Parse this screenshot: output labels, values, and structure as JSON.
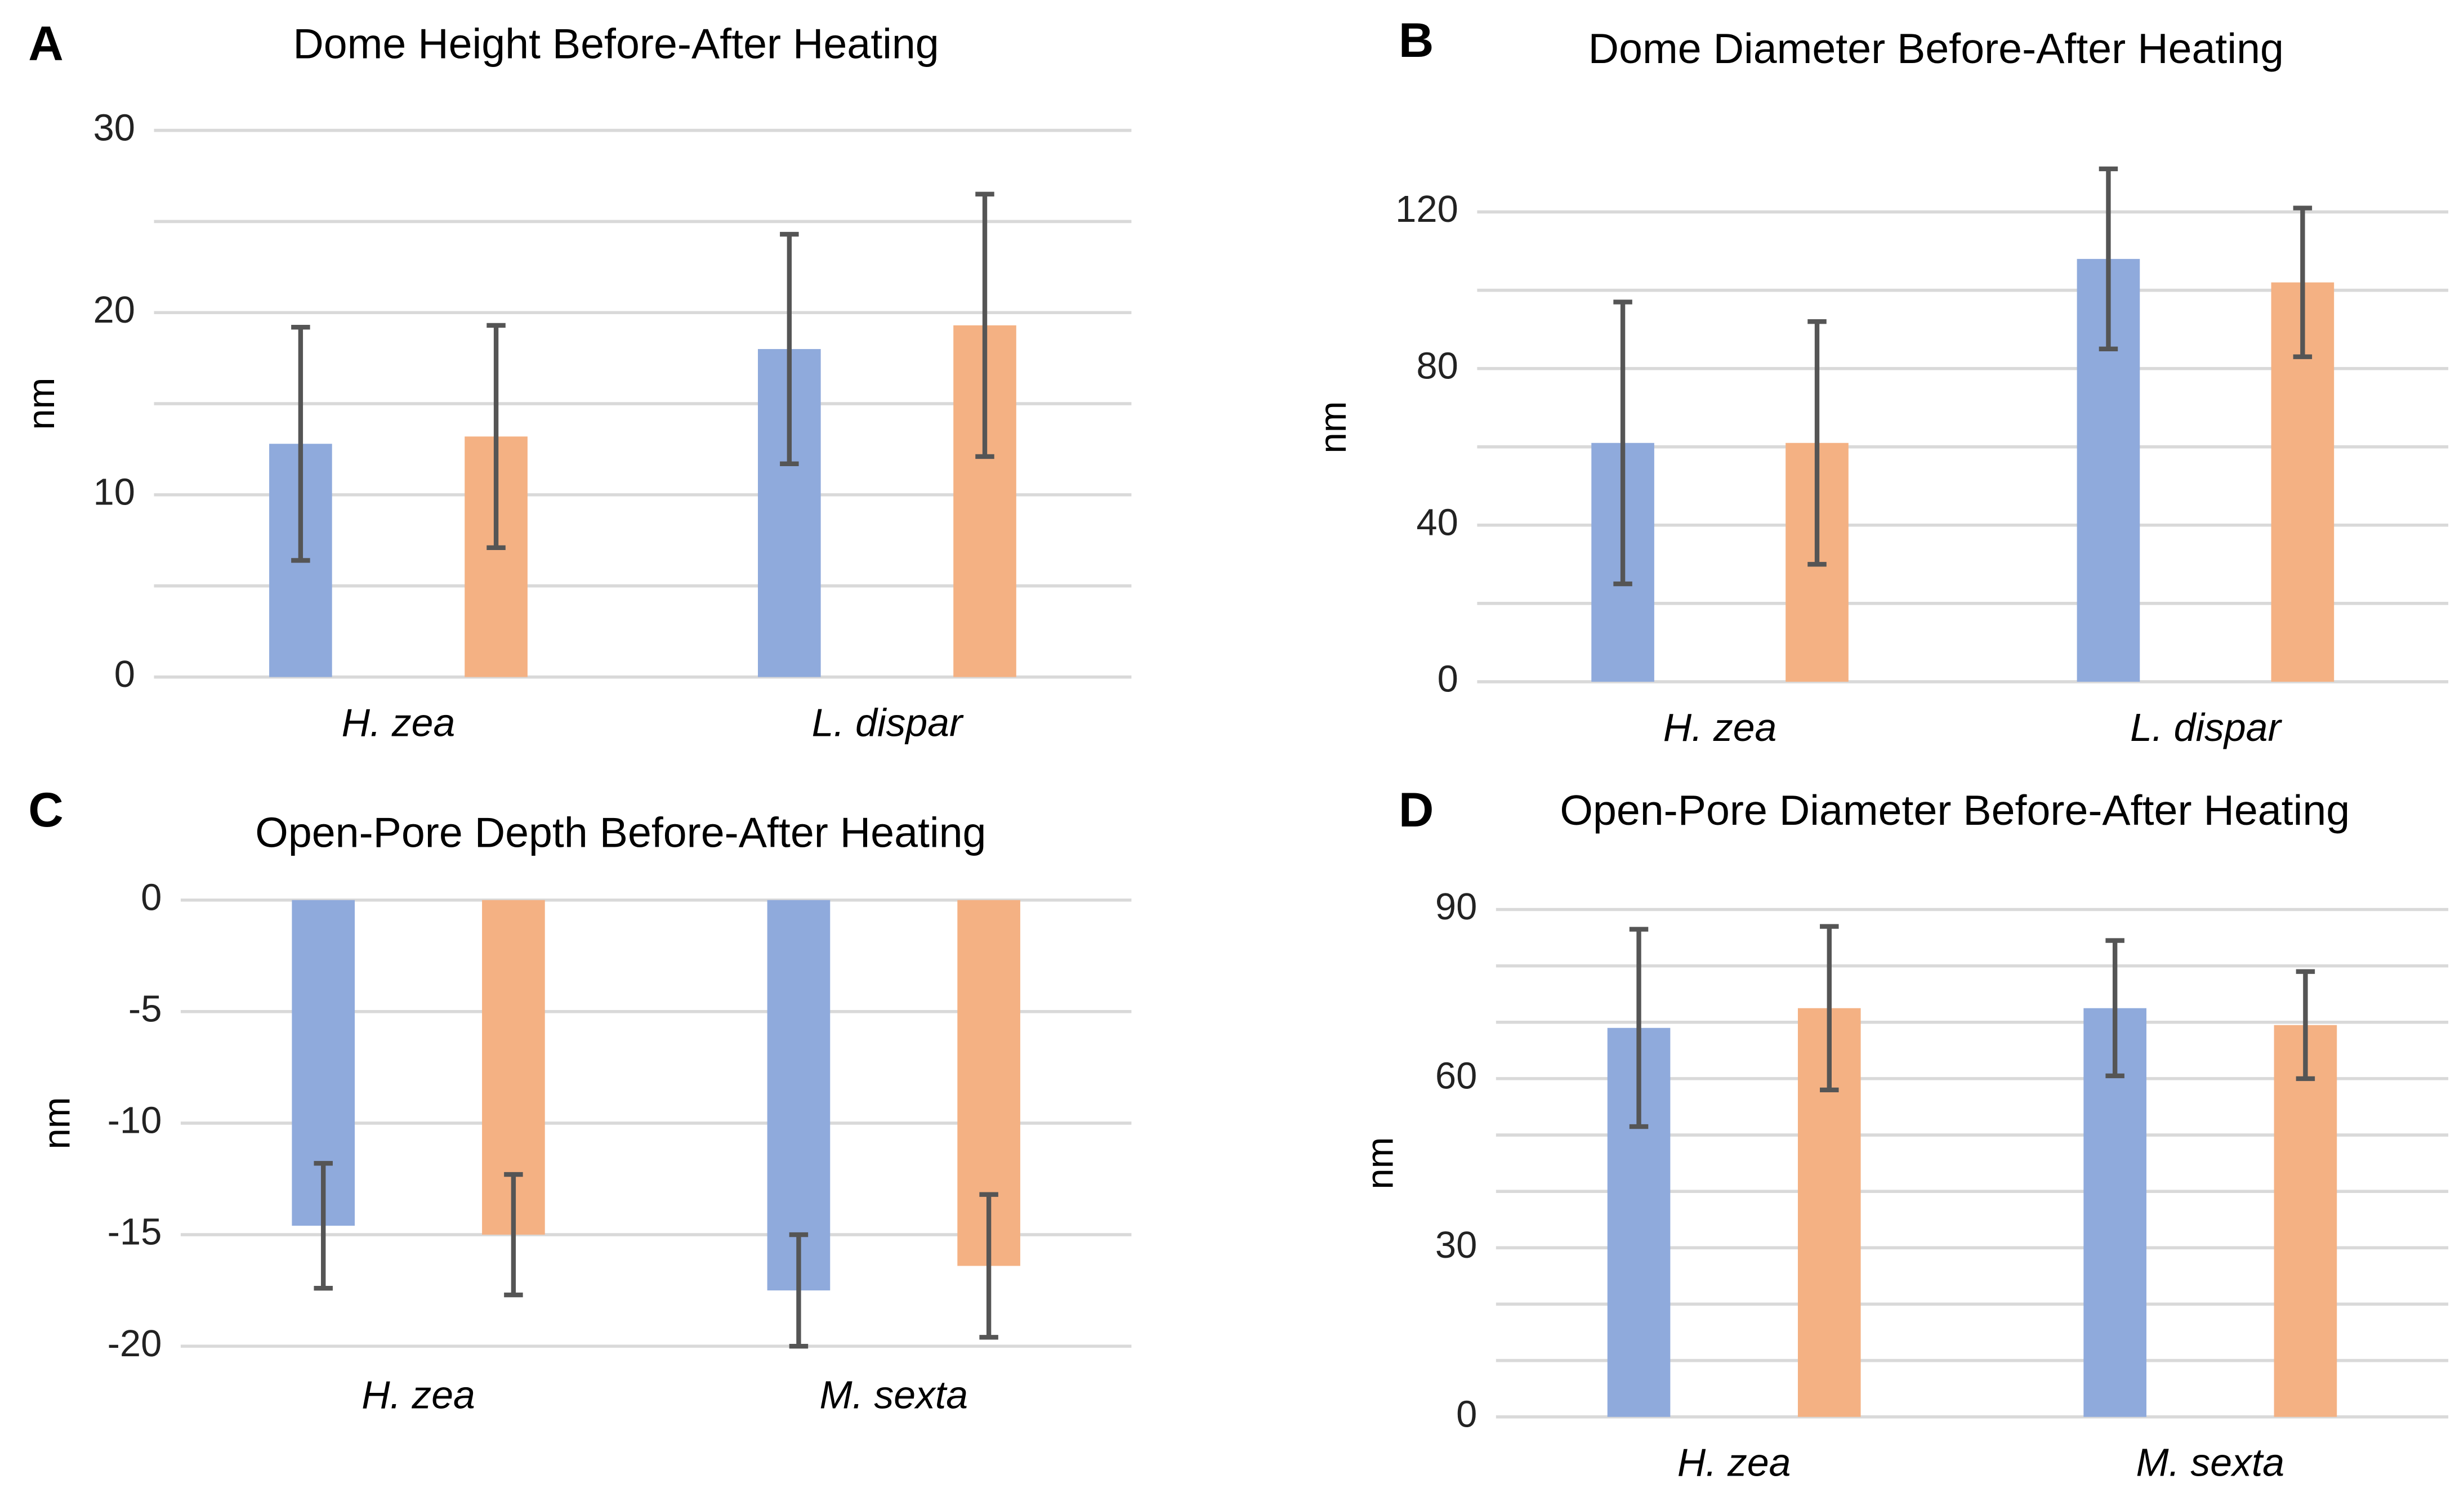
{
  "chart_data": [
    {
      "type": "bar",
      "label": "A",
      "title": "Dome Height Before-After Heating",
      "y_label": "nm",
      "categories": [
        "H. zea",
        "L. dispar"
      ],
      "series": [
        {
          "color": "#8faadc",
          "values": [
            12.8,
            18.0
          ],
          "errors": [
            6.4,
            6.3
          ]
        },
        {
          "color": "#f4b183",
          "values": [
            13.2,
            19.3
          ],
          "errors": [
            6.1,
            7.2
          ]
        }
      ],
      "ylim": [
        0,
        30
      ],
      "yticks": [
        0,
        10,
        20,
        30
      ],
      "minor_yticks": [
        5,
        15,
        25
      ],
      "grid": true,
      "error_color": "#555555"
    },
    {
      "type": "bar",
      "label": "B",
      "title": "Dome Diameter Before-After Heating",
      "y_label": "nm",
      "categories": [
        "H. zea",
        "L. dispar"
      ],
      "series": [
        {
          "color": "#8faadc",
          "values": [
            61,
            108
          ],
          "errors": [
            36,
            23
          ]
        },
        {
          "color": "#f4b183",
          "values": [
            61,
            102
          ],
          "errors": [
            31,
            19
          ]
        }
      ],
      "ylim": [
        0,
        130
      ],
      "yticks": [
        0,
        40,
        80,
        120
      ],
      "minor_yticks": [
        20,
        60,
        100
      ],
      "grid": true,
      "error_color": "#555555"
    },
    {
      "type": "bar",
      "label": "C",
      "title": "Open-Pore  Depth Before-After Heating",
      "y_label": "nm",
      "categories": [
        "H. zea",
        "M. sexta"
      ],
      "series": [
        {
          "color": "#8faadc",
          "values": [
            -14.6,
            -17.5
          ],
          "errors": [
            2.8,
            2.5
          ]
        },
        {
          "color": "#f4b183",
          "values": [
            -15.0,
            -16.4
          ],
          "errors": [
            2.7,
            3.2
          ]
        }
      ],
      "ylim": [
        -20,
        0
      ],
      "yticks": [
        -20,
        -15,
        -10,
        -5,
        0
      ],
      "grid": true,
      "error_color": "#555555"
    },
    {
      "type": "bar",
      "label": "D",
      "title": "Open-Pore  Diameter Before-After Heating",
      "y_label": "nm",
      "categories": [
        "H. zea",
        "M. sexta"
      ],
      "series": [
        {
          "color": "#8faadc",
          "values": [
            69,
            72.5
          ],
          "errors": [
            17.5,
            12
          ]
        },
        {
          "color": "#f4b183",
          "values": [
            72.5,
            69.5
          ],
          "errors": [
            14.5,
            9.5
          ]
        }
      ],
      "ylim": [
        0,
        90
      ],
      "yticks": [
        0,
        30,
        60,
        90
      ],
      "minor_yticks": [
        10,
        20,
        40,
        50,
        70,
        80
      ],
      "grid": true,
      "error_color": "#555555"
    }
  ]
}
